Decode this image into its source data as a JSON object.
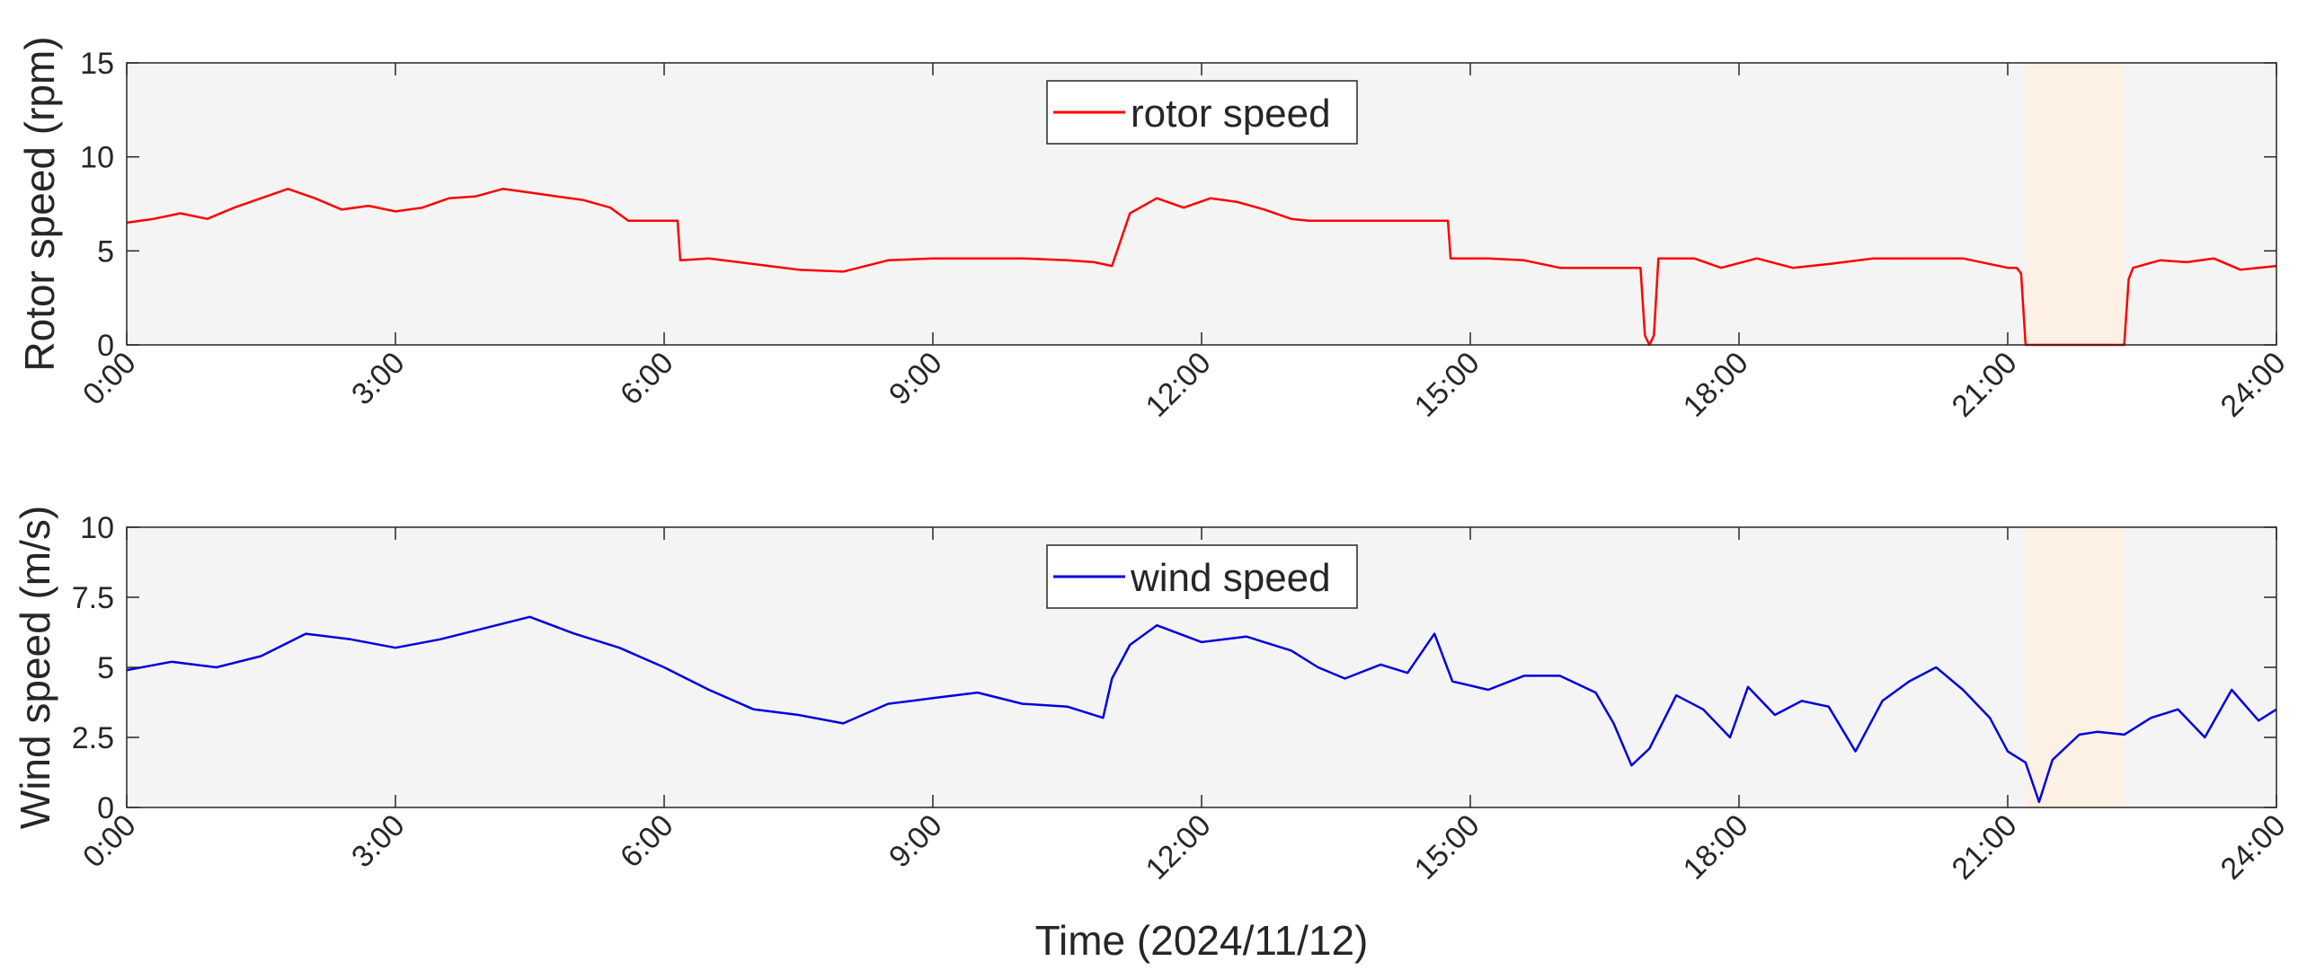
{
  "figure": {
    "xlabel": "Time (2024/11/12)"
  },
  "chart_data": [
    {
      "type": "line",
      "title": "",
      "xlabel": "",
      "ylabel": "Rotor speed (rpm)",
      "xlim": [
        0,
        24
      ],
      "ylim": [
        0,
        15
      ],
      "xticks": [
        0,
        3,
        6,
        9,
        12,
        15,
        18,
        21,
        24
      ],
      "xtick_labels": [
        "0:00",
        "3:00",
        "6:00",
        "9:00",
        "12:00",
        "15:00",
        "18:00",
        "21:00",
        "24:00"
      ],
      "yticks": [
        0,
        5,
        10,
        15
      ],
      "ytick_labels": [
        "0",
        "5",
        "10",
        "15"
      ],
      "grid": false,
      "legend": "top-center",
      "shaded_interval": [
        21.2,
        22.3
      ],
      "series": [
        {
          "name": "rotor speed",
          "color": "#ff0000",
          "x": [
            0,
            0.3,
            0.6,
            0.9,
            1.2,
            1.5,
            1.8,
            2.1,
            2.4,
            2.7,
            3.0,
            3.3,
            3.6,
            3.9,
            4.2,
            4.5,
            4.8,
            5.1,
            5.4,
            5.6,
            5.8,
            6.0,
            6.15,
            6.18,
            6.5,
            7.0,
            7.5,
            8.0,
            8.5,
            9.0,
            9.5,
            10.0,
            10.5,
            10.8,
            11.0,
            11.2,
            11.5,
            11.8,
            12.1,
            12.4,
            12.7,
            13.0,
            13.2,
            13.6,
            14.0,
            14.4,
            14.75,
            14.78,
            15.2,
            15.6,
            16.0,
            16.5,
            16.9,
            16.95,
            17.0,
            17.05,
            17.1,
            17.5,
            17.8,
            18.2,
            18.6,
            19.0,
            19.5,
            20.0,
            20.5,
            21.0,
            21.1,
            21.15,
            21.2,
            22.3,
            22.35,
            22.4,
            22.7,
            23.0,
            23.3,
            23.6,
            24.0
          ],
          "values": [
            6.5,
            6.7,
            7.0,
            6.7,
            7.3,
            7.8,
            8.3,
            7.8,
            7.2,
            7.4,
            7.1,
            7.3,
            7.8,
            7.9,
            8.3,
            8.1,
            7.9,
            7.7,
            7.3,
            6.6,
            6.6,
            6.6,
            6.6,
            4.5,
            4.6,
            4.3,
            4.0,
            3.9,
            4.5,
            4.6,
            4.6,
            4.6,
            4.5,
            4.4,
            4.2,
            7.0,
            7.8,
            7.3,
            7.8,
            7.6,
            7.2,
            6.7,
            6.6,
            6.6,
            6.6,
            6.6,
            6.6,
            4.6,
            4.6,
            4.5,
            4.1,
            4.1,
            4.1,
            0.5,
            0.0,
            0.5,
            4.6,
            4.6,
            4.1,
            4.6,
            4.1,
            4.3,
            4.6,
            4.6,
            4.6,
            4.1,
            4.1,
            3.8,
            0.0,
            0.0,
            3.5,
            4.1,
            4.5,
            4.4,
            4.6,
            4.0,
            4.2
          ]
        }
      ]
    },
    {
      "type": "line",
      "title": "",
      "xlabel": "Time (2024/11/12)",
      "ylabel": "Wind speed (m/s)",
      "xlim": [
        0,
        24
      ],
      "ylim": [
        0,
        10
      ],
      "xticks": [
        0,
        3,
        6,
        9,
        12,
        15,
        18,
        21,
        24
      ],
      "xtick_labels": [
        "0:00",
        "3:00",
        "6:00",
        "9:00",
        "12:00",
        "15:00",
        "18:00",
        "21:00",
        "24:00"
      ],
      "yticks": [
        0,
        2.5,
        5,
        7.5,
        10
      ],
      "ytick_labels": [
        "0",
        "2.5",
        "5",
        "7.5",
        "10"
      ],
      "grid": false,
      "legend": "top-center",
      "shaded_interval": [
        21.2,
        22.3
      ],
      "series": [
        {
          "name": "wind speed",
          "color": "#0000e0",
          "x": [
            0,
            0.5,
            1.0,
            1.5,
            2.0,
            2.5,
            3.0,
            3.5,
            4.0,
            4.5,
            5.0,
            5.5,
            6.0,
            6.5,
            7.0,
            7.5,
            8.0,
            8.5,
            9.0,
            9.5,
            10.0,
            10.5,
            10.9,
            11.0,
            11.2,
            11.5,
            12.0,
            12.5,
            13.0,
            13.3,
            13.6,
            14.0,
            14.3,
            14.6,
            14.8,
            15.2,
            15.6,
            16.0,
            16.4,
            16.6,
            16.8,
            17.0,
            17.3,
            17.6,
            17.9,
            18.1,
            18.4,
            18.7,
            19.0,
            19.3,
            19.6,
            19.9,
            20.2,
            20.5,
            20.8,
            21.0,
            21.2,
            21.35,
            21.5,
            21.8,
            22.0,
            22.3,
            22.6,
            22.9,
            23.2,
            23.5,
            23.8,
            24.0
          ],
          "values": [
            4.9,
            5.2,
            5.0,
            5.4,
            6.2,
            6.0,
            5.7,
            6.0,
            6.4,
            6.8,
            6.2,
            5.7,
            5.0,
            4.2,
            3.5,
            3.3,
            3.0,
            3.7,
            3.9,
            4.1,
            3.7,
            3.6,
            3.2,
            4.6,
            5.8,
            6.5,
            5.9,
            6.1,
            5.6,
            5.0,
            4.6,
            5.1,
            4.8,
            6.2,
            4.5,
            4.2,
            4.7,
            4.7,
            4.1,
            3.0,
            1.5,
            2.1,
            4.0,
            3.5,
            2.5,
            4.3,
            3.3,
            3.8,
            3.6,
            2.0,
            3.8,
            4.5,
            5.0,
            4.2,
            3.2,
            2.0,
            1.6,
            0.2,
            1.7,
            2.6,
            2.7,
            2.6,
            3.2,
            3.5,
            2.5,
            4.2,
            3.1,
            3.5
          ]
        }
      ]
    }
  ]
}
